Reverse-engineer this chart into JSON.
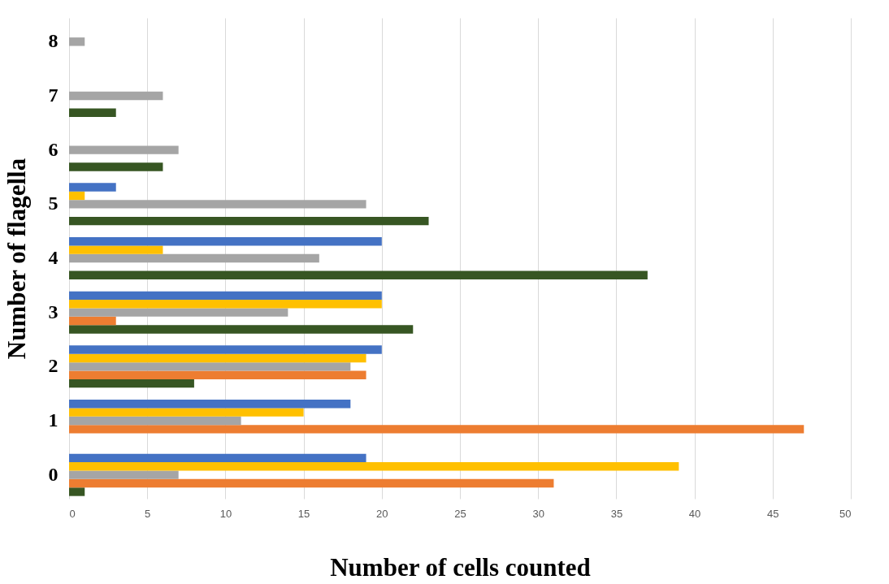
{
  "chart_data": {
    "type": "bar",
    "orientation": "horizontal",
    "xlabel": "Number of cells counted",
    "ylabel": "Number of flagella",
    "categories": [
      "8",
      "7",
      "6",
      "5",
      "4",
      "3",
      "2",
      "1",
      "0"
    ],
    "series": [
      {
        "color": "#375623",
        "values": [
          null,
          3,
          6,
          23,
          37,
          22,
          8,
          null,
          1
        ]
      },
      {
        "color": "#ed7d31",
        "values": [
          null,
          null,
          null,
          null,
          null,
          3,
          19,
          47,
          31
        ]
      },
      {
        "color": "#a5a5a5",
        "values": [
          1,
          6,
          7,
          19,
          16,
          14,
          18,
          11,
          7
        ]
      },
      {
        "color": "#ffc000",
        "values": [
          null,
          null,
          null,
          1,
          6,
          20,
          19,
          15,
          39
        ]
      },
      {
        "color": "#4472c4",
        "values": [
          null,
          null,
          null,
          3,
          20,
          20,
          20,
          18,
          19
        ]
      }
    ],
    "xlim": [
      0,
      50
    ],
    "xticks": [
      0,
      5,
      10,
      15,
      20,
      25,
      30,
      35,
      40,
      45,
      50
    ],
    "grid": "x",
    "legend": false
  }
}
